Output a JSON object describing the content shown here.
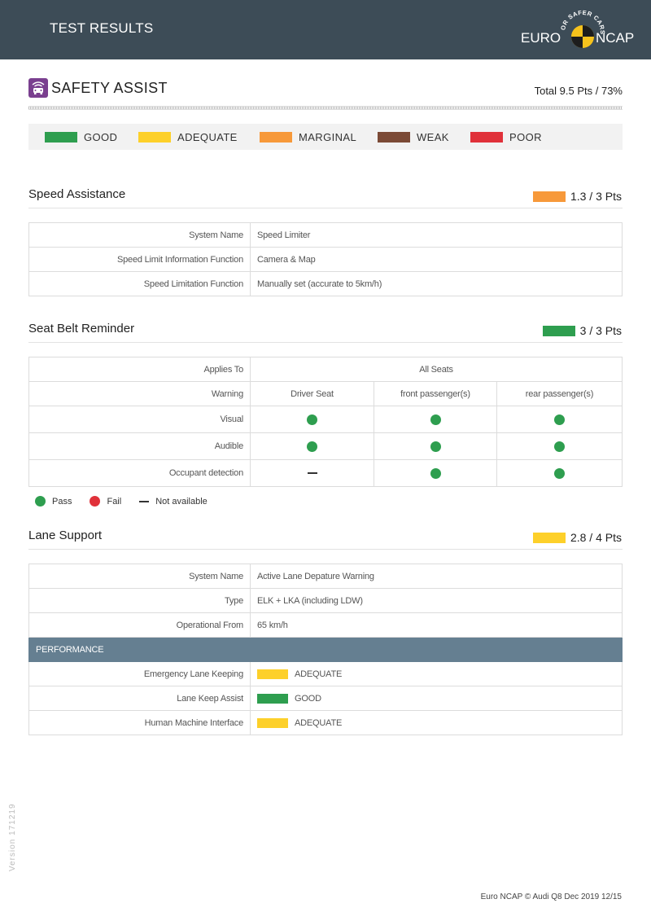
{
  "header": {
    "title": "TEST RESULTS"
  },
  "logo": {
    "arc_text": "FOR SAFER CARS",
    "left": "EURO",
    "right": "NCAP"
  },
  "safety_assist": {
    "title": "SAFETY ASSIST",
    "total": "Total 9.5 Pts / 73%"
  },
  "legend": [
    {
      "label": "GOOD",
      "color": "#2e9e4f"
    },
    {
      "label": "ADEQUATE",
      "color": "#fdd02a"
    },
    {
      "label": "MARGINAL",
      "color": "#f7993a"
    },
    {
      "label": "WEAK",
      "color": "#7b4a36"
    },
    {
      "label": "POOR",
      "color": "#e0313a"
    }
  ],
  "speed_assistance": {
    "title": "Speed Assistance",
    "score": "1.3 / 3 Pts",
    "score_color": "#f7993a",
    "rows": [
      {
        "label": "System Name",
        "value": "Speed Limiter"
      },
      {
        "label": "Speed Limit Information Function",
        "value": "Camera & Map"
      },
      {
        "label": "Speed Limitation Function",
        "value": "Manually set (accurate to 5km/h)"
      }
    ]
  },
  "seat_belt": {
    "title": "Seat Belt Reminder",
    "score": "3 / 3 Pts",
    "score_color": "#2e9e4f",
    "applies_label": "Applies To",
    "applies_value": "All Seats",
    "warning_label": "Warning",
    "columns": [
      "Driver Seat",
      "front passenger(s)",
      "rear passenger(s)"
    ],
    "rows": [
      {
        "label": "Visual",
        "values": [
          "pass",
          "pass",
          "pass"
        ]
      },
      {
        "label": "Audible",
        "values": [
          "pass",
          "pass",
          "pass"
        ]
      },
      {
        "label": "Occupant detection",
        "values": [
          "na",
          "pass",
          "pass"
        ]
      }
    ],
    "key": {
      "pass": "Pass",
      "fail": "Fail",
      "na": "Not available"
    }
  },
  "lane_support": {
    "title": "Lane Support",
    "score": "2.8 / 4 Pts",
    "score_color": "#fdd02a",
    "rows": [
      {
        "label": "System Name",
        "value": "Active Lane Depature Warning"
      },
      {
        "label": "Type",
        "value": "ELK + LKA (including LDW)"
      },
      {
        "label": "Operational From",
        "value": "65 km/h"
      }
    ],
    "performance_label": "PERFORMANCE",
    "performance": [
      {
        "label": "Emergency Lane Keeping",
        "value": "ADEQUATE",
        "color": "#fdd02a"
      },
      {
        "label": "Lane Keep Assist",
        "value": "GOOD",
        "color": "#2e9e4f"
      },
      {
        "label": "Human Machine Interface",
        "value": "ADEQUATE",
        "color": "#fdd02a"
      }
    ]
  },
  "colors": {
    "pass": "#2e9e4f",
    "fail": "#e0313a",
    "header": "#3d4c57",
    "icon": "#7a3f8f"
  },
  "version": "Version 171219",
  "footer": "Euro NCAP © Audi Q8 Dec 2019 12/15"
}
